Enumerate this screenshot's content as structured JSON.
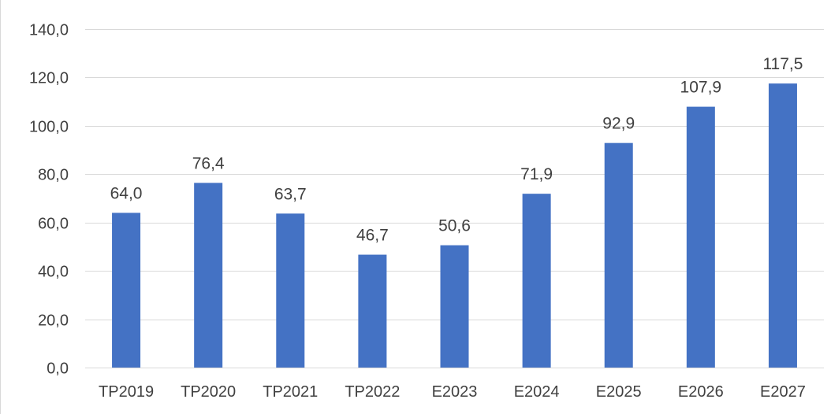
{
  "chart_data": {
    "type": "bar",
    "title": "",
    "xlabel": "",
    "ylabel": "",
    "categories": [
      "TP2019",
      "TP2020",
      "TP2021",
      "TP2022",
      "E2023",
      "E2024",
      "E2025",
      "E2026",
      "E2027"
    ],
    "values": [
      64.0,
      76.4,
      63.7,
      46.7,
      50.6,
      71.9,
      92.9,
      107.9,
      117.5
    ],
    "value_labels": [
      "64,0",
      "76,4",
      "63,7",
      "46,7",
      "50,6",
      "71,9",
      "92,9",
      "107,9",
      "117,5"
    ],
    "ylim": [
      0,
      140
    ],
    "y_ticks": [
      0,
      20,
      40,
      60,
      80,
      100,
      120,
      140
    ],
    "y_tick_labels": [
      "0,0",
      "20,0",
      "40,0",
      "60,0",
      "80,0",
      "100,0",
      "120,0",
      "140,0"
    ],
    "grid": true,
    "legend": "none",
    "bar_color": "#4472C4",
    "grid_color": "#D9D9D9",
    "text_color": "#404040"
  }
}
